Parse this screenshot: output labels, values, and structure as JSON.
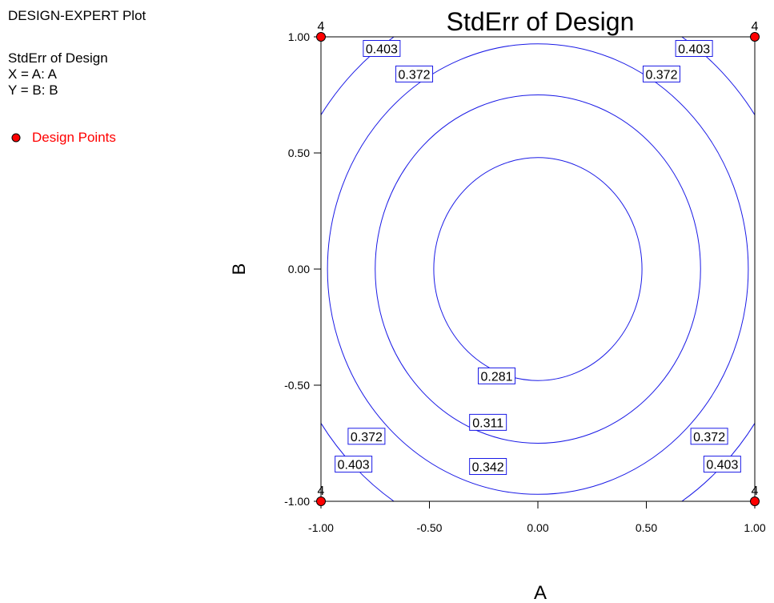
{
  "sidebar": {
    "program": "DESIGN-EXPERT Plot",
    "response": "StdErr of Design",
    "x_factor": "X = A: A",
    "y_factor": "Y = B: B",
    "legend_label": "Design Points"
  },
  "chart_data": {
    "type": "contour",
    "title": "StdErr of Design",
    "xlabel": "A",
    "ylabel": "B",
    "xlim": [
      -1,
      1
    ],
    "ylim": [
      -1,
      1
    ],
    "x_ticks": [
      "-1.00",
      "-0.50",
      "0.00",
      "0.50",
      "1.00"
    ],
    "y_ticks": [
      "1.00",
      "0.50",
      "0.00",
      "-0.50",
      "-1.00"
    ],
    "contours": [
      {
        "level": "0.281",
        "radius": 0.48
      },
      {
        "level": "0.311",
        "radius": 0.75
      },
      {
        "level": "0.342",
        "radius": 0.97
      },
      {
        "level": "0.372",
        "radius": 1.2
      },
      {
        "level": "0.403",
        "radius": 1.4
      }
    ],
    "contour_labels": [
      {
        "text": "0.403",
        "x": -0.72,
        "y": 0.95
      },
      {
        "text": "0.403",
        "x": 0.72,
        "y": 0.95
      },
      {
        "text": "0.372",
        "x": -0.57,
        "y": 0.84
      },
      {
        "text": "0.372",
        "x": 0.57,
        "y": 0.84
      },
      {
        "text": "0.281",
        "x": -0.19,
        "y": -0.46
      },
      {
        "text": "0.311",
        "x": -0.23,
        "y": -0.66
      },
      {
        "text": "0.372",
        "x": -0.79,
        "y": -0.72
      },
      {
        "text": "0.372",
        "x": 0.79,
        "y": -0.72
      },
      {
        "text": "0.403",
        "x": -0.85,
        "y": -0.84
      },
      {
        "text": "0.342",
        "x": -0.23,
        "y": -0.85
      },
      {
        "text": "0.403",
        "x": 0.85,
        "y": -0.84
      }
    ],
    "design_points": [
      {
        "x": -1,
        "y": 1,
        "count": "4"
      },
      {
        "x": 1,
        "y": 1,
        "count": "4"
      },
      {
        "x": -1,
        "y": -1,
        "count": "4"
      },
      {
        "x": 1,
        "y": -1,
        "count": "4"
      }
    ],
    "colors": {
      "contour": "#1a1ae6",
      "point": "#ff0000",
      "legend_text": "#ff0000",
      "frame": "#000000"
    }
  }
}
